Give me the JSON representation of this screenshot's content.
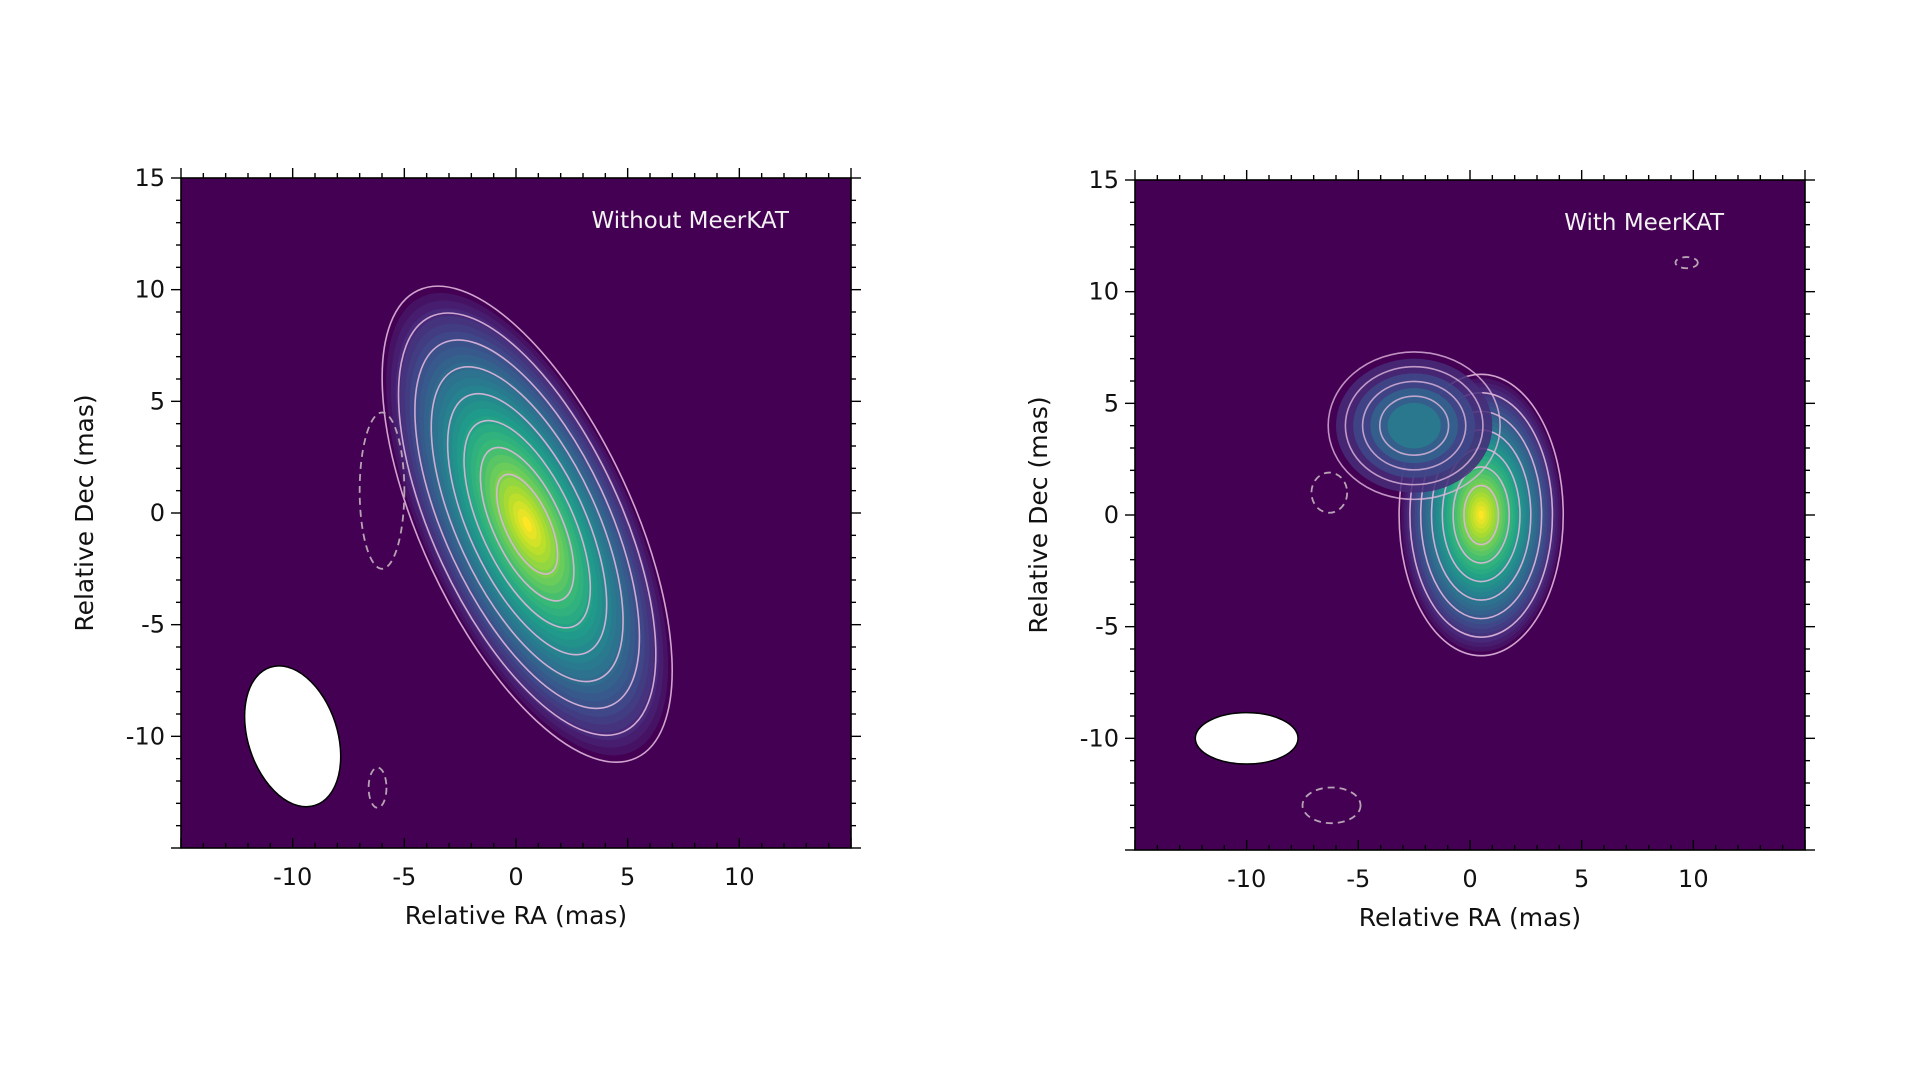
{
  "chart_data": [
    {
      "type": "heatmap",
      "panel_label": "Without MeerKAT",
      "xlabel": "Relative RA (mas)",
      "ylabel": "Relative Dec (mas)",
      "xlim": [
        -15,
        15
      ],
      "ylim": [
        -15,
        15
      ],
      "xticks": [
        -10,
        -5,
        0,
        5,
        10
      ],
      "yticks": [
        15,
        10,
        5,
        0,
        -5,
        -10
      ],
      "colormap": "viridis",
      "background_color": "#440154",
      "contour_color": "#e0b6dc",
      "negative_contour_style": "dashed",
      "source": {
        "center": [
          0.5,
          -0.5
        ],
        "major_axis_mas": 22,
        "minor_axis_mas": 9,
        "position_angle_deg": -25
      },
      "contour_levels": 8,
      "negative_contours": [
        {
          "center": [
            -6.0,
            1.0
          ],
          "semi_axes": [
            1.0,
            3.5
          ]
        },
        {
          "center": [
            -6.2,
            -12.3
          ],
          "semi_axes": [
            0.4,
            0.9
          ]
        }
      ],
      "beam": {
        "center": [
          -10.0,
          -10.0
        ],
        "major_mas": 6.5,
        "minor_mas": 4.0,
        "position_angle_deg": -18
      }
    },
    {
      "type": "heatmap",
      "panel_label": "With MeerKAT",
      "xlabel": "Relative RA (mas)",
      "ylabel": "Relative Dec (mas)",
      "xlim": [
        -15,
        15
      ],
      "ylim": [
        -15,
        15
      ],
      "xticks": [
        -10,
        -5,
        0,
        5,
        10
      ],
      "yticks": [
        15,
        10,
        5,
        0,
        -5,
        -10
      ],
      "colormap": "viridis",
      "background_color": "#440154",
      "contour_color": "#e0b6dc",
      "negative_contour_style": "dashed",
      "source": {
        "center": [
          0.5,
          0.0
        ],
        "major_axis_mas": 12,
        "minor_axis_mas": 7,
        "position_angle_deg": 0
      },
      "extension": {
        "center": [
          -2.5,
          4.0
        ],
        "semi_axes": [
          3.5,
          3.0
        ]
      },
      "contour_levels": 7,
      "negative_contours": [
        {
          "center": [
            -6.3,
            1.0
          ],
          "semi_axes": [
            0.8,
            0.9
          ]
        },
        {
          "center": [
            9.7,
            11.3
          ],
          "semi_axes": [
            0.5,
            0.25
          ]
        },
        {
          "center": [
            -6.2,
            -13.0
          ],
          "semi_axes": [
            1.3,
            0.8
          ]
        }
      ],
      "beam": {
        "center": [
          -10.0,
          -10.0
        ],
        "major_mas": 4.6,
        "minor_mas": 2.3,
        "position_angle_deg": 0
      }
    }
  ]
}
